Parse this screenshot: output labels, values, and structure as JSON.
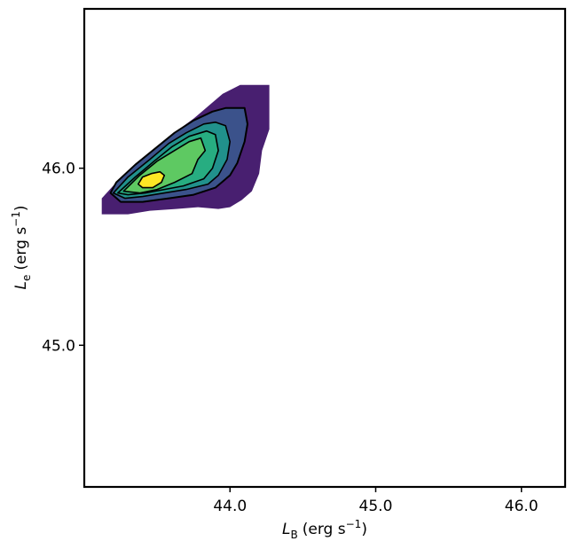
{
  "chart_data": {
    "type": "contour",
    "title": "",
    "xlabel": {
      "symbol": "L",
      "subscript": "B",
      "units": "(erg s",
      "exponent": "−1",
      "close": ")"
    },
    "ylabel": {
      "symbol": "L",
      "subscript": "e",
      "units": "(erg s",
      "exponent": "−1",
      "close": ")"
    },
    "xlim": [
      43.0,
      46.3
    ],
    "ylim": [
      44.2,
      46.9
    ],
    "xticks": [
      44.0,
      45.0,
      46.0
    ],
    "yticks": [
      45.0,
      46.0
    ],
    "xtick_labels": [
      "44.0",
      "45.0",
      "46.0"
    ],
    "ytick_labels": [
      "45.0",
      "46.0"
    ],
    "grid": false,
    "colormap": "viridis",
    "fill_levels": [
      {
        "color": "#481f70",
        "polygon": [
          [
            43.12,
            45.74
          ],
          [
            43.12,
            45.83
          ],
          [
            43.22,
            45.92
          ],
          [
            43.35,
            45.97
          ],
          [
            43.45,
            46.07
          ],
          [
            43.55,
            46.15
          ],
          [
            43.65,
            46.22
          ],
          [
            43.75,
            46.28
          ],
          [
            43.85,
            46.35
          ],
          [
            43.95,
            46.42
          ],
          [
            44.07,
            46.47
          ],
          [
            44.27,
            46.47
          ],
          [
            44.27,
            46.32
          ],
          [
            44.27,
            46.22
          ],
          [
            44.22,
            46.1
          ],
          [
            44.2,
            45.97
          ],
          [
            44.15,
            45.87
          ],
          [
            44.08,
            45.82
          ],
          [
            44.0,
            45.78
          ],
          [
            43.92,
            45.77
          ],
          [
            43.78,
            45.78
          ],
          [
            43.63,
            45.77
          ],
          [
            43.45,
            45.76
          ],
          [
            43.3,
            45.74
          ],
          [
            43.12,
            45.74
          ]
        ]
      },
      {
        "color": "#3b528b",
        "polygon": [
          [
            43.18,
            45.86
          ],
          [
            43.22,
            45.92
          ],
          [
            43.35,
            46.02
          ],
          [
            43.5,
            46.12
          ],
          [
            43.62,
            46.2
          ],
          [
            43.75,
            46.27
          ],
          [
            43.88,
            46.32
          ],
          [
            43.97,
            46.34
          ],
          [
            44.1,
            46.34
          ],
          [
            44.12,
            46.25
          ],
          [
            44.1,
            46.15
          ],
          [
            44.05,
            46.03
          ],
          [
            44.0,
            45.96
          ],
          [
            43.9,
            45.89
          ],
          [
            43.75,
            45.85
          ],
          [
            43.58,
            45.83
          ],
          [
            43.4,
            45.81
          ],
          [
            43.25,
            45.81
          ],
          [
            43.18,
            45.86
          ]
        ]
      },
      {
        "color": "#21918c",
        "polygon": [
          [
            43.2,
            45.86
          ],
          [
            43.3,
            45.95
          ],
          [
            43.45,
            46.05
          ],
          [
            43.58,
            46.14
          ],
          [
            43.7,
            46.2
          ],
          [
            43.82,
            46.25
          ],
          [
            43.9,
            46.26
          ],
          [
            43.97,
            46.24
          ],
          [
            44.0,
            46.15
          ],
          [
            43.98,
            46.05
          ],
          [
            43.92,
            45.96
          ],
          [
            43.85,
            45.91
          ],
          [
            43.7,
            45.88
          ],
          [
            43.55,
            45.86
          ],
          [
            43.4,
            45.84
          ],
          [
            43.28,
            45.83
          ],
          [
            43.2,
            45.86
          ]
        ]
      },
      {
        "color": "#27ad81",
        "polygon": [
          [
            43.23,
            45.86
          ],
          [
            43.35,
            45.95
          ],
          [
            43.48,
            46.04
          ],
          [
            43.6,
            46.12
          ],
          [
            43.72,
            46.18
          ],
          [
            43.84,
            46.21
          ],
          [
            43.9,
            46.19
          ],
          [
            43.92,
            46.1
          ],
          [
            43.88,
            46.0
          ],
          [
            43.82,
            45.94
          ],
          [
            43.68,
            45.9
          ],
          [
            43.55,
            45.88
          ],
          [
            43.42,
            45.86
          ],
          [
            43.3,
            45.85
          ],
          [
            43.23,
            45.86
          ]
        ]
      },
      {
        "color": "#5ec962",
        "polygon": [
          [
            43.27,
            45.87
          ],
          [
            43.38,
            45.96
          ],
          [
            43.5,
            46.04
          ],
          [
            43.62,
            46.1
          ],
          [
            43.72,
            46.15
          ],
          [
            43.8,
            46.17
          ],
          [
            43.83,
            46.1
          ],
          [
            43.78,
            46.05
          ],
          [
            43.74,
            45.97
          ],
          [
            43.62,
            45.92
          ],
          [
            43.5,
            45.88
          ],
          [
            43.38,
            45.86
          ],
          [
            43.27,
            45.87
          ]
        ]
      },
      {
        "color": "#fde725",
        "polygon": [
          [
            43.37,
            45.91
          ],
          [
            43.4,
            45.95
          ],
          [
            43.46,
            45.97
          ],
          [
            43.52,
            45.98
          ],
          [
            43.55,
            45.96
          ],
          [
            43.53,
            45.92
          ],
          [
            43.47,
            45.89
          ],
          [
            43.4,
            45.89
          ],
          [
            43.37,
            45.91
          ]
        ]
      }
    ],
    "contour_lines": [
      [
        [
          43.18,
          45.86
        ],
        [
          43.22,
          45.92
        ],
        [
          43.35,
          46.02
        ],
        [
          43.5,
          46.12
        ],
        [
          43.62,
          46.2
        ],
        [
          43.75,
          46.27
        ],
        [
          43.88,
          46.32
        ],
        [
          43.97,
          46.34
        ],
        [
          44.1,
          46.34
        ],
        [
          44.12,
          46.25
        ],
        [
          44.1,
          46.15
        ],
        [
          44.05,
          46.03
        ],
        [
          44.0,
          45.96
        ],
        [
          43.9,
          45.89
        ],
        [
          43.75,
          45.85
        ],
        [
          43.58,
          45.83
        ],
        [
          43.4,
          45.81
        ],
        [
          43.25,
          45.81
        ],
        [
          43.18,
          45.86
        ]
      ],
      [
        [
          43.2,
          45.86
        ],
        [
          43.3,
          45.95
        ],
        [
          43.45,
          46.05
        ],
        [
          43.58,
          46.14
        ],
        [
          43.7,
          46.2
        ],
        [
          43.82,
          46.25
        ],
        [
          43.9,
          46.26
        ],
        [
          43.97,
          46.24
        ],
        [
          44.0,
          46.15
        ],
        [
          43.98,
          46.05
        ],
        [
          43.92,
          45.96
        ],
        [
          43.85,
          45.91
        ],
        [
          43.7,
          45.88
        ],
        [
          43.55,
          45.86
        ],
        [
          43.4,
          45.84
        ],
        [
          43.28,
          45.83
        ],
        [
          43.2,
          45.86
        ]
      ],
      [
        [
          43.23,
          45.86
        ],
        [
          43.35,
          45.95
        ],
        [
          43.48,
          46.04
        ],
        [
          43.6,
          46.12
        ],
        [
          43.72,
          46.18
        ],
        [
          43.84,
          46.21
        ],
        [
          43.9,
          46.19
        ],
        [
          43.92,
          46.1
        ],
        [
          43.88,
          46.0
        ],
        [
          43.82,
          45.94
        ],
        [
          43.68,
          45.9
        ],
        [
          43.55,
          45.88
        ],
        [
          43.42,
          45.86
        ],
        [
          43.3,
          45.85
        ],
        [
          43.23,
          45.86
        ]
      ],
      [
        [
          43.27,
          45.87
        ],
        [
          43.38,
          45.96
        ],
        [
          43.5,
          46.04
        ],
        [
          43.62,
          46.1
        ],
        [
          43.72,
          46.15
        ],
        [
          43.8,
          46.17
        ],
        [
          43.83,
          46.1
        ],
        [
          43.78,
          46.05
        ],
        [
          43.74,
          45.97
        ],
        [
          43.62,
          45.92
        ],
        [
          43.5,
          45.88
        ],
        [
          43.38,
          45.86
        ],
        [
          43.27,
          45.87
        ]
      ],
      [
        [
          43.37,
          45.91
        ],
        [
          43.4,
          45.95
        ],
        [
          43.46,
          45.97
        ],
        [
          43.52,
          45.98
        ],
        [
          43.55,
          45.96
        ],
        [
          43.53,
          45.92
        ],
        [
          43.47,
          45.89
        ],
        [
          43.4,
          45.89
        ],
        [
          43.37,
          45.91
        ]
      ]
    ]
  }
}
